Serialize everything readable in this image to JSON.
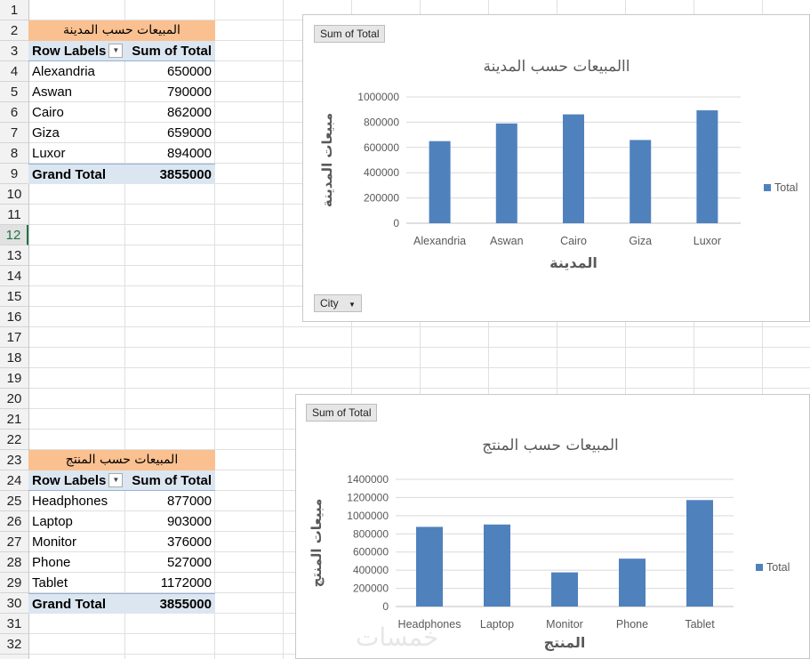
{
  "rows": [
    "1",
    "2",
    "3",
    "4",
    "5",
    "6",
    "7",
    "8",
    "9",
    "10",
    "11",
    "12",
    "13",
    "14",
    "15",
    "16",
    "17",
    "18",
    "19",
    "20",
    "21",
    "22",
    "23",
    "24",
    "25",
    "26",
    "27",
    "28",
    "29",
    "30",
    "31",
    "32"
  ],
  "active_row": "12",
  "pivot1": {
    "title": "المبيعات حسب المدينة",
    "col_label": "Row Labels",
    "col_value": "Sum of Total",
    "rows": [
      {
        "label": "Alexandria",
        "value": "650000"
      },
      {
        "label": "Aswan",
        "value": "790000"
      },
      {
        "label": "Cairo",
        "value": "862000"
      },
      {
        "label": "Giza",
        "value": "659000"
      },
      {
        "label": "Luxor",
        "value": "894000"
      }
    ],
    "total_label": "Grand Total",
    "total_value": "3855000"
  },
  "pivot2": {
    "title": "المبيعات حسب المنتج",
    "col_label": "Row Labels",
    "col_value": "Sum of Total",
    "rows": [
      {
        "label": "Headphones",
        "value": "877000"
      },
      {
        "label": "Laptop",
        "value": "903000"
      },
      {
        "label": "Monitor",
        "value": "376000"
      },
      {
        "label": "Phone",
        "value": "527000"
      },
      {
        "label": "Tablet",
        "value": "1172000"
      }
    ],
    "total_label": "Grand Total",
    "total_value": "3855000"
  },
  "chart1_ui": {
    "field_button": "Sum of Total",
    "axis_button": "City"
  },
  "chart2_ui": {
    "field_button": "Sum of Total"
  },
  "watermark": "خمسات",
  "colors": {
    "bar": "#4f81bd",
    "pivot_title_bg": "#fac090",
    "pivot_header_bg": "#dce6f1"
  },
  "chart_data": [
    {
      "type": "bar",
      "title": "االمبيعات حسب  المدينة",
      "xlabel": "المدينة",
      "ylabel": "مبيعات المدينة",
      "categories": [
        "Alexandria",
        "Aswan",
        "Cairo",
        "Giza",
        "Luxor"
      ],
      "series": [
        {
          "name": "Total",
          "values": [
            650000,
            790000,
            862000,
            659000,
            894000
          ]
        }
      ],
      "ylim": [
        0,
        1000000
      ],
      "yticks": [
        0,
        200000,
        400000,
        600000,
        800000,
        1000000
      ],
      "ytick_labels": [
        "0",
        "200000",
        "400000",
        "600000",
        "800000",
        "1000000"
      ],
      "grid": true,
      "legend": "right"
    },
    {
      "type": "bar",
      "title": "المبيعات حسب المنتج",
      "xlabel": "المنتج",
      "ylabel": "مبيعات المنتج",
      "categories": [
        "Headphones",
        "Laptop",
        "Monitor",
        "Phone",
        "Tablet"
      ],
      "series": [
        {
          "name": "Total",
          "values": [
            877000,
            903000,
            376000,
            527000,
            1172000
          ]
        }
      ],
      "ylim": [
        0,
        1400000
      ],
      "yticks": [
        0,
        200000,
        400000,
        600000,
        800000,
        1000000,
        1200000,
        1400000
      ],
      "ytick_labels": [
        "0",
        "200000",
        "400000",
        "600000",
        "800000",
        "1000000",
        "1200000",
        "1400000"
      ],
      "grid": true,
      "legend": "right"
    }
  ]
}
